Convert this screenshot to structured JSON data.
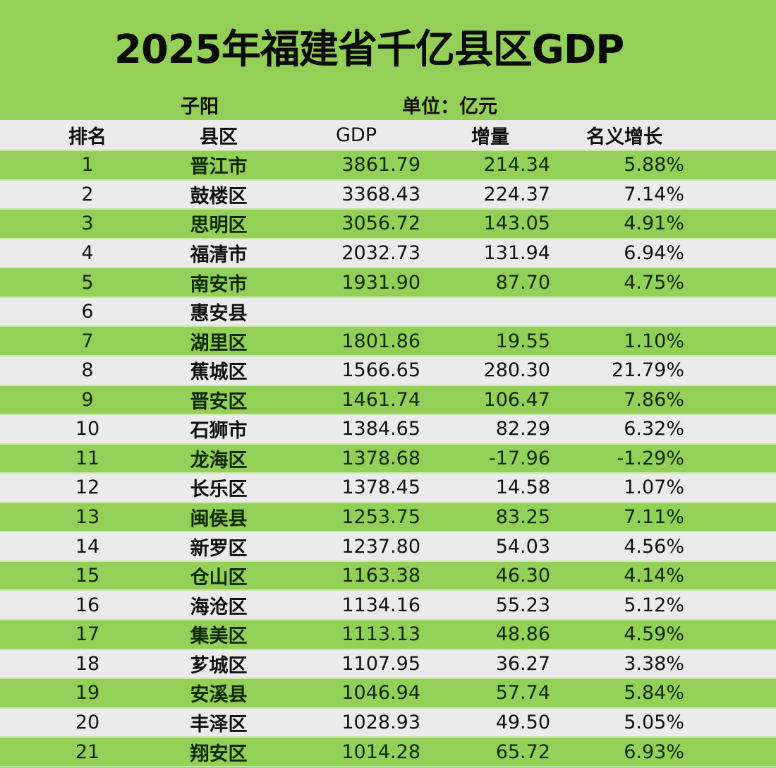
{
  "title": "2025年福建省千亿县区GDP",
  "author": "子阳",
  "unit": "单位：亿元",
  "colors": {
    "green_row": "#94cf58",
    "gray_row": "#ebebeb",
    "text": "#111111"
  },
  "table": {
    "headers": {
      "rank": "排名",
      "name": "县区",
      "gdp": "GDP",
      "increase": "增量",
      "growth": "名义增长"
    },
    "rows": [
      {
        "rank": "1",
        "name": "晋江市",
        "gdp": "3861.79",
        "increase": "214.34",
        "growth": "5.88%"
      },
      {
        "rank": "2",
        "name": "鼓楼区",
        "gdp": "3368.43",
        "increase": "224.37",
        "growth": "7.14%"
      },
      {
        "rank": "3",
        "name": "思明区",
        "gdp": "3056.72",
        "increase": "143.05",
        "growth": "4.91%"
      },
      {
        "rank": "4",
        "name": "福清市",
        "gdp": "2032.73",
        "increase": "131.94",
        "growth": "6.94%"
      },
      {
        "rank": "5",
        "name": "南安市",
        "gdp": "1931.90",
        "increase": "87.70",
        "growth": "4.75%"
      },
      {
        "rank": "6",
        "name": "惠安县",
        "gdp": "",
        "increase": "",
        "growth": ""
      },
      {
        "rank": "7",
        "name": "湖里区",
        "gdp": "1801.86",
        "increase": "19.55",
        "growth": "1.10%"
      },
      {
        "rank": "8",
        "name": "蕉城区",
        "gdp": "1566.65",
        "increase": "280.30",
        "growth": "21.79%"
      },
      {
        "rank": "9",
        "name": "晋安区",
        "gdp": "1461.74",
        "increase": "106.47",
        "growth": "7.86%"
      },
      {
        "rank": "10",
        "name": "石狮市",
        "gdp": "1384.65",
        "increase": "82.29",
        "growth": "6.32%"
      },
      {
        "rank": "11",
        "name": "龙海区",
        "gdp": "1378.68",
        "increase": "-17.96",
        "growth": "-1.29%"
      },
      {
        "rank": "12",
        "name": "长乐区",
        "gdp": "1378.45",
        "increase": "14.58",
        "growth": "1.07%"
      },
      {
        "rank": "13",
        "name": "闽侯县",
        "gdp": "1253.75",
        "increase": "83.25",
        "growth": "7.11%"
      },
      {
        "rank": "14",
        "name": "新罗区",
        "gdp": "1237.80",
        "increase": "54.03",
        "growth": "4.56%"
      },
      {
        "rank": "15",
        "name": "仓山区",
        "gdp": "1163.38",
        "increase": "46.30",
        "growth": "4.14%"
      },
      {
        "rank": "16",
        "name": "海沧区",
        "gdp": "1134.16",
        "increase": "55.23",
        "growth": "5.12%"
      },
      {
        "rank": "17",
        "name": "集美区",
        "gdp": "1113.13",
        "increase": "48.86",
        "growth": "4.59%"
      },
      {
        "rank": "18",
        "name": "芗城区",
        "gdp": "1107.95",
        "increase": "36.27",
        "growth": "3.38%"
      },
      {
        "rank": "19",
        "name": "安溪县",
        "gdp": "1046.94",
        "increase": "57.74",
        "growth": "5.84%"
      },
      {
        "rank": "20",
        "name": "丰泽区",
        "gdp": "1028.93",
        "increase": "49.50",
        "growth": "5.05%"
      },
      {
        "rank": "21",
        "name": "翔安区",
        "gdp": "1014.28",
        "increase": "65.72",
        "growth": "6.93%"
      }
    ]
  }
}
